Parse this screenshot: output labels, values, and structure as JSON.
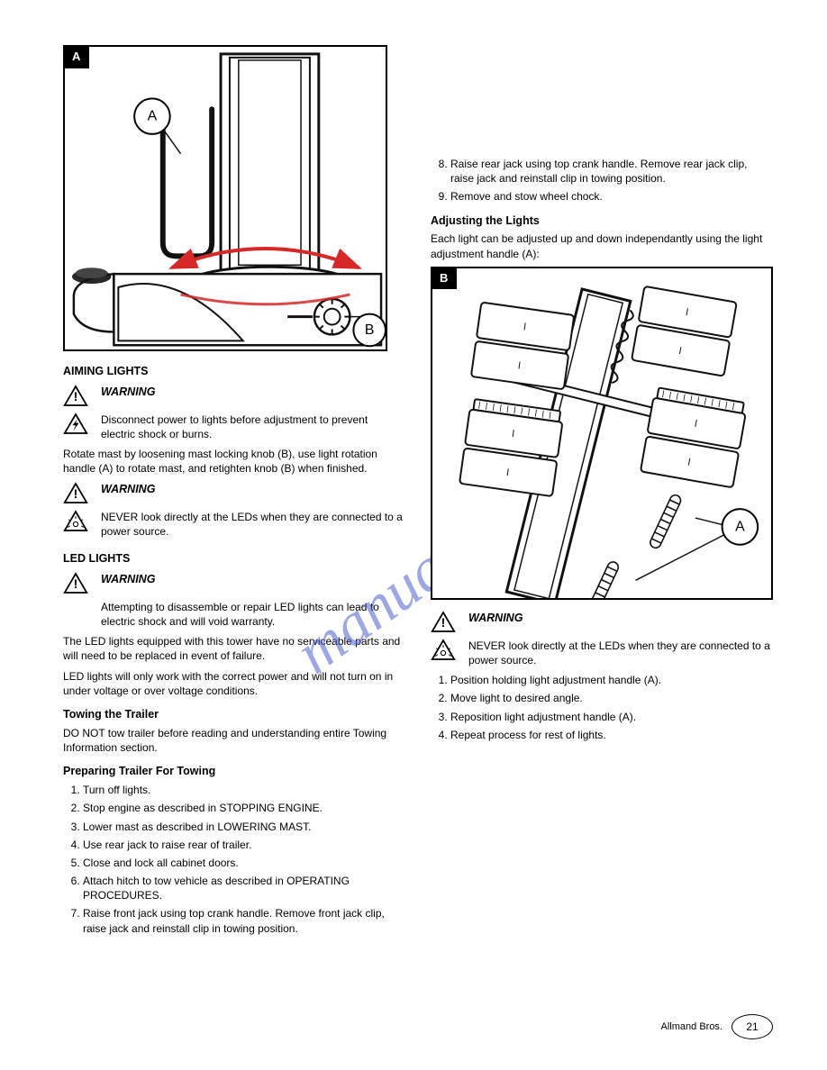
{
  "watermark": {
    "text": "manualshive.com",
    "color": "#4a5ecc",
    "opacity": 0.55,
    "fontsize": 68
  },
  "figures": {
    "A": {
      "label": "A",
      "callouts": {
        "a": "A",
        "b": "B"
      }
    },
    "B": {
      "label": "B",
      "callouts": {
        "a": "A"
      }
    }
  },
  "left": {
    "h_aim": "AIMING LIGHTS",
    "warn1_title": "WARNING",
    "warn1_text": "Disconnect power to lights before adjustment to prevent electric shock or burns.",
    "p_aim1": "Rotate mast by loosening mast locking knob (B), use light rotation handle (A) to rotate mast, and retighten knob (B) when finished.",
    "warn2_title": "WARNING",
    "warn2_text": "NEVER look directly at the LEDs when they are connected to a power source.",
    "h_led": "LED LIGHTS",
    "warn3_title": "WARNING",
    "warn3_text": "Attempting to disassemble or repair LED lights can lead to electric shock and will void warranty.",
    "p_led1": "The LED lights equipped with this tower have no serviceable parts and will need to be replaced in event of failure.",
    "p_led2": "LED lights will only work with the correct power and will not turn on in under voltage or over voltage conditions.",
    "h_towing": "Towing the Trailer",
    "p_tow1": "DO NOT tow trailer before reading and understanding entire Towing Information section.",
    "h_prep": "Preparing Trailer For Towing",
    "steps_prep": [
      "Turn off lights.",
      "Stop engine as described in STOPPING ENGINE.",
      "Lower mast as described in LOWERING MAST.",
      "Use rear jack to raise rear of trailer.",
      "Close and lock all cabinet doors.",
      "Attach hitch to tow vehicle as described in OPERATING PROCEDURES.",
      "Raise front jack using top crank handle. Remove front jack clip, raise jack and reinstall clip in towing position."
    ]
  },
  "right": {
    "steps_cont": [
      "Raise rear jack using top crank handle. Remove rear jack clip, raise jack and reinstall clip in towing position.",
      "Remove and stow wheel chock."
    ],
    "h_adjust": "Adjusting the Lights",
    "p_adjust1": "Each light can be adjusted up and down independantly using the light adjustment handle (A):",
    "warn4_title": "WARNING",
    "warn4_text": "NEVER look directly at the LEDs when they are connected to a power source.",
    "steps_adjust": [
      "Position holding light adjustment handle (A).",
      "Move light to desired angle.",
      "Reposition light adjustment handle (A).",
      "Repeat process for rest of lights."
    ]
  },
  "footer": {
    "text": "Allmand Bros.",
    "page": "21"
  },
  "colors": {
    "arrow": "#d62828",
    "line": "#111111",
    "watermark": "#4a5ecc"
  }
}
